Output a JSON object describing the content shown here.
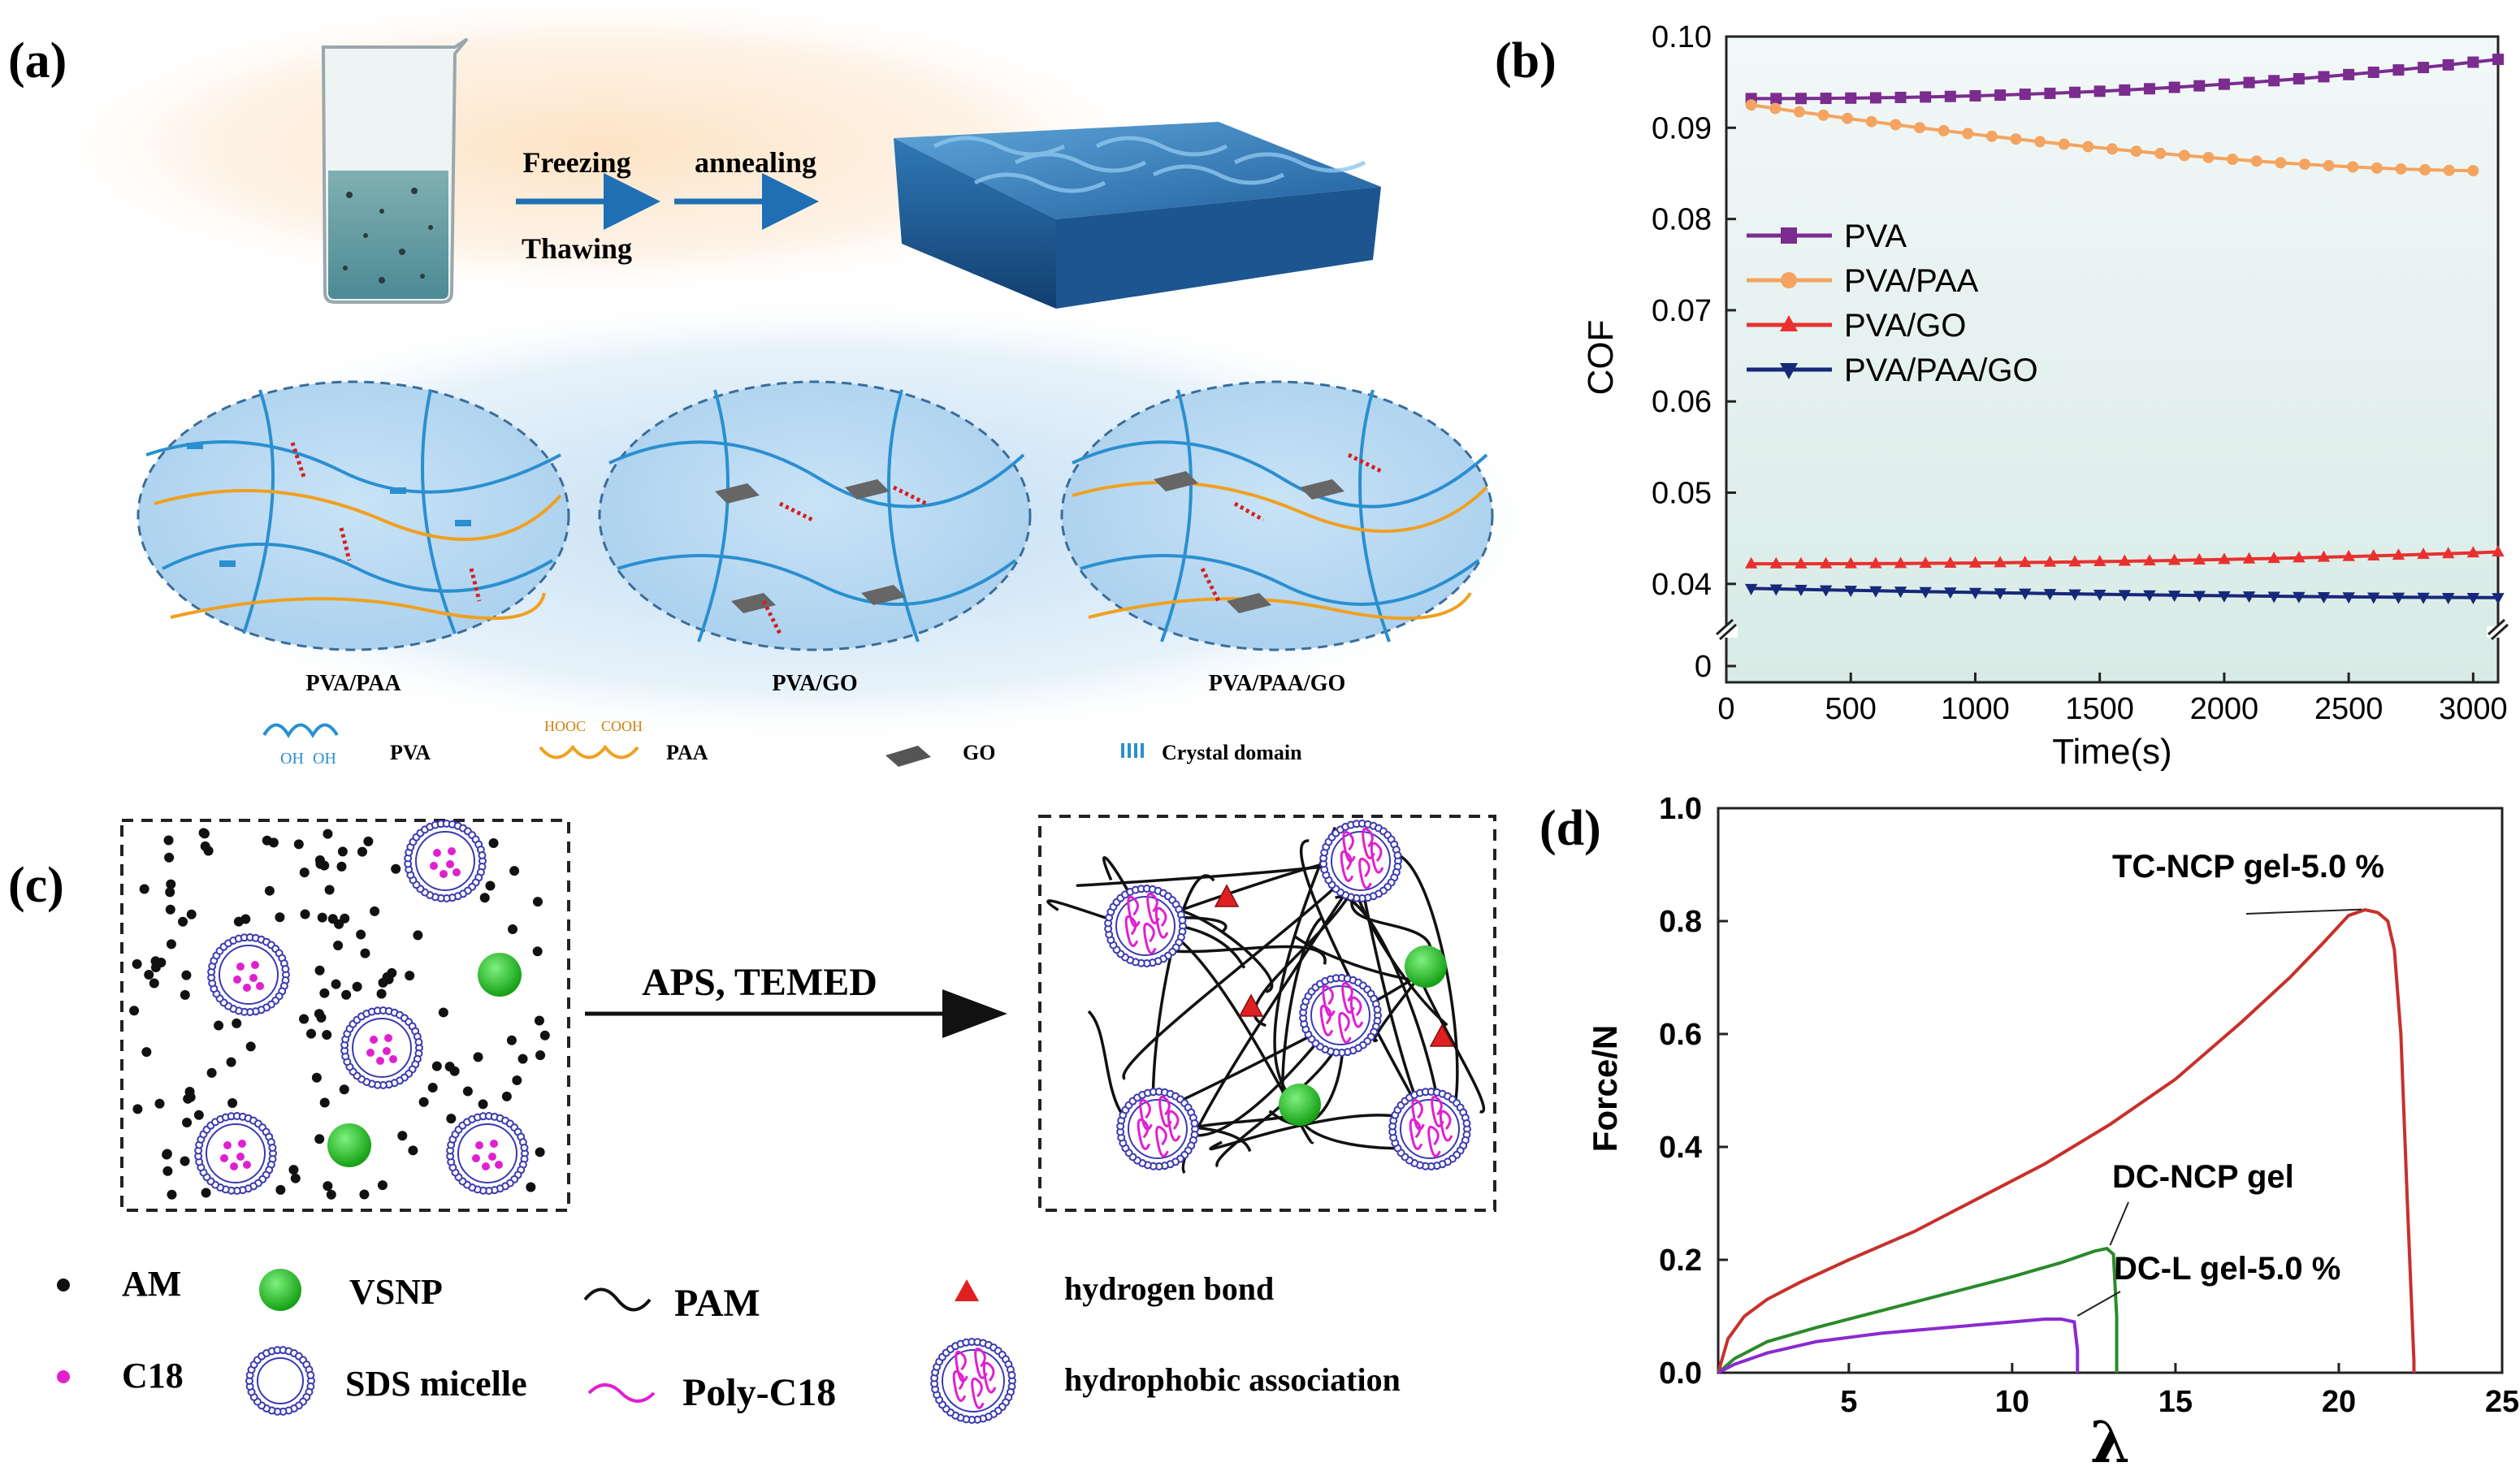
{
  "panels": {
    "a": {
      "label": "(a)",
      "steps": {
        "freezing": "Freezing",
        "thawing": "Thawing",
        "annealing": "annealing"
      },
      "networks": [
        "PVA/PAA",
        "PVA/GO",
        "PVA/PAA/GO"
      ],
      "molecule_labels": {
        "cooh": "COOH",
        "hooc": "HOOC",
        "oh": "OH"
      },
      "legend": [
        {
          "key": "pva",
          "label": "PVA"
        },
        {
          "key": "paa",
          "label": "PAA"
        },
        {
          "key": "go",
          "label": "GO"
        },
        {
          "key": "crystal",
          "label": "Crystal domain"
        }
      ]
    },
    "b": {
      "label": "(b)"
    },
    "c": {
      "label": "(c)",
      "arrow_label": "APS, TEMED",
      "legend": [
        {
          "key": "am",
          "label": "AM"
        },
        {
          "key": "vsnp",
          "label": "VSNP"
        },
        {
          "key": "pam",
          "label": "PAM"
        },
        {
          "key": "hbond",
          "label": "hydrogen bond"
        },
        {
          "key": "c18",
          "label": "C18"
        },
        {
          "key": "sds",
          "label": "SDS micelle"
        },
        {
          "key": "polyc18",
          "label": "Poly-C18"
        },
        {
          "key": "hydrophobic",
          "label": "hydrophobic association"
        }
      ]
    },
    "d": {
      "label": "(d)"
    }
  },
  "colors": {
    "pva": "#7b2c8f",
    "pva_paa": "#f4a460",
    "pva_go": "#e8312f",
    "pva_paa_go": "#17287a",
    "pva_chain": "#2a8fd0",
    "paa_chain": "#f0a020",
    "hbond": "#d42020",
    "tc_ncp": "#c8302a",
    "dc_ncp": "#2a8a2a",
    "dc_l": "#8a2ad0",
    "vsnp": "#22c022",
    "c18": "#e020d0",
    "micelle": "#3a3ab0"
  },
  "chart_data": [
    {
      "id": "b",
      "type": "line",
      "xlabel": "Time(s)",
      "ylabel": "COF",
      "xlim": [
        0,
        3100
      ],
      "ylim": [
        0,
        0.1
      ],
      "axis_break": [
        0,
        0.035
      ],
      "xticks": [
        0,
        500,
        1000,
        1500,
        2000,
        2500,
        3000
      ],
      "yticks": [
        0,
        0.04,
        0.05,
        0.06,
        0.07,
        0.08,
        0.09,
        0.1
      ],
      "ytick_labels": [
        "0",
        "0.04",
        "0.05",
        "0.06",
        "0.07",
        "0.08",
        "0.09",
        "0.10"
      ],
      "series": [
        {
          "name": "PVA",
          "marker": "square",
          "x_start": 100,
          "x_end": 3100,
          "y_start": 0.0932,
          "y_end": 0.0975,
          "shape": "rising_late"
        },
        {
          "name": "PVA/PAA",
          "marker": "circle",
          "x_start": 100,
          "x_end": 3000,
          "y_start": 0.0925,
          "y_end": 0.0853,
          "shape": "decay"
        },
        {
          "name": "PVA/GO",
          "marker": "triangle-up",
          "x_start": 100,
          "x_end": 3100,
          "y_start": 0.0422,
          "y_end": 0.0435,
          "shape": "rising_late"
        },
        {
          "name": "PVA/PAA/GO",
          "marker": "triangle-down",
          "x_start": 100,
          "x_end": 3100,
          "y_start": 0.0395,
          "y_end": 0.0385,
          "shape": "decay"
        }
      ]
    },
    {
      "id": "d",
      "type": "line",
      "xlabel": "λ",
      "ylabel": "Force/N",
      "xlim": [
        1,
        25
      ],
      "ylim": [
        0,
        1.0
      ],
      "xticks": [
        5,
        10,
        15,
        20,
        25
      ],
      "yticks": [
        0,
        0.2,
        0.4,
        0.6,
        0.8,
        1.0
      ],
      "ytick_labels": [
        "0.0",
        "0.2",
        "0.4",
        "0.6",
        "0.8",
        "1.0"
      ],
      "series": [
        {
          "name": "TC-NCP gel-5.0 %",
          "color_key": "tc_ncp",
          "x": [
            1,
            1.3,
            1.8,
            2.5,
            3.5,
            5,
            7,
            9,
            11,
            13,
            15,
            17,
            18.5,
            19.5,
            20.3,
            20.8,
            21.2,
            21.5,
            21.7,
            21.9,
            22.1,
            22.3,
            22.3
          ],
          "y": [
            0,
            0.06,
            0.1,
            0.13,
            0.16,
            0.2,
            0.25,
            0.31,
            0.37,
            0.44,
            0.52,
            0.62,
            0.7,
            0.76,
            0.81,
            0.82,
            0.815,
            0.8,
            0.75,
            0.6,
            0.3,
            0.02,
            0
          ]
        },
        {
          "name": "DC-NCP gel",
          "color_key": "dc_ncp",
          "x": [
            1,
            1.5,
            2.5,
            4,
            6,
            8,
            10,
            11.5,
            12.5,
            12.9,
            13.1,
            13.2,
            13.2
          ],
          "y": [
            0,
            0.025,
            0.055,
            0.08,
            0.11,
            0.14,
            0.17,
            0.195,
            0.215,
            0.22,
            0.21,
            0.1,
            0
          ]
        },
        {
          "name": "DC-L gel-5.0 %",
          "color_key": "dc_l",
          "x": [
            1,
            1.5,
            2.5,
            4,
            6,
            8,
            9,
            10,
            11,
            11.5,
            11.9,
            12,
            12
          ],
          "y": [
            0,
            0.015,
            0.035,
            0.055,
            0.07,
            0.08,
            0.085,
            0.09,
            0.095,
            0.095,
            0.09,
            0.04,
            0
          ]
        }
      ]
    }
  ]
}
